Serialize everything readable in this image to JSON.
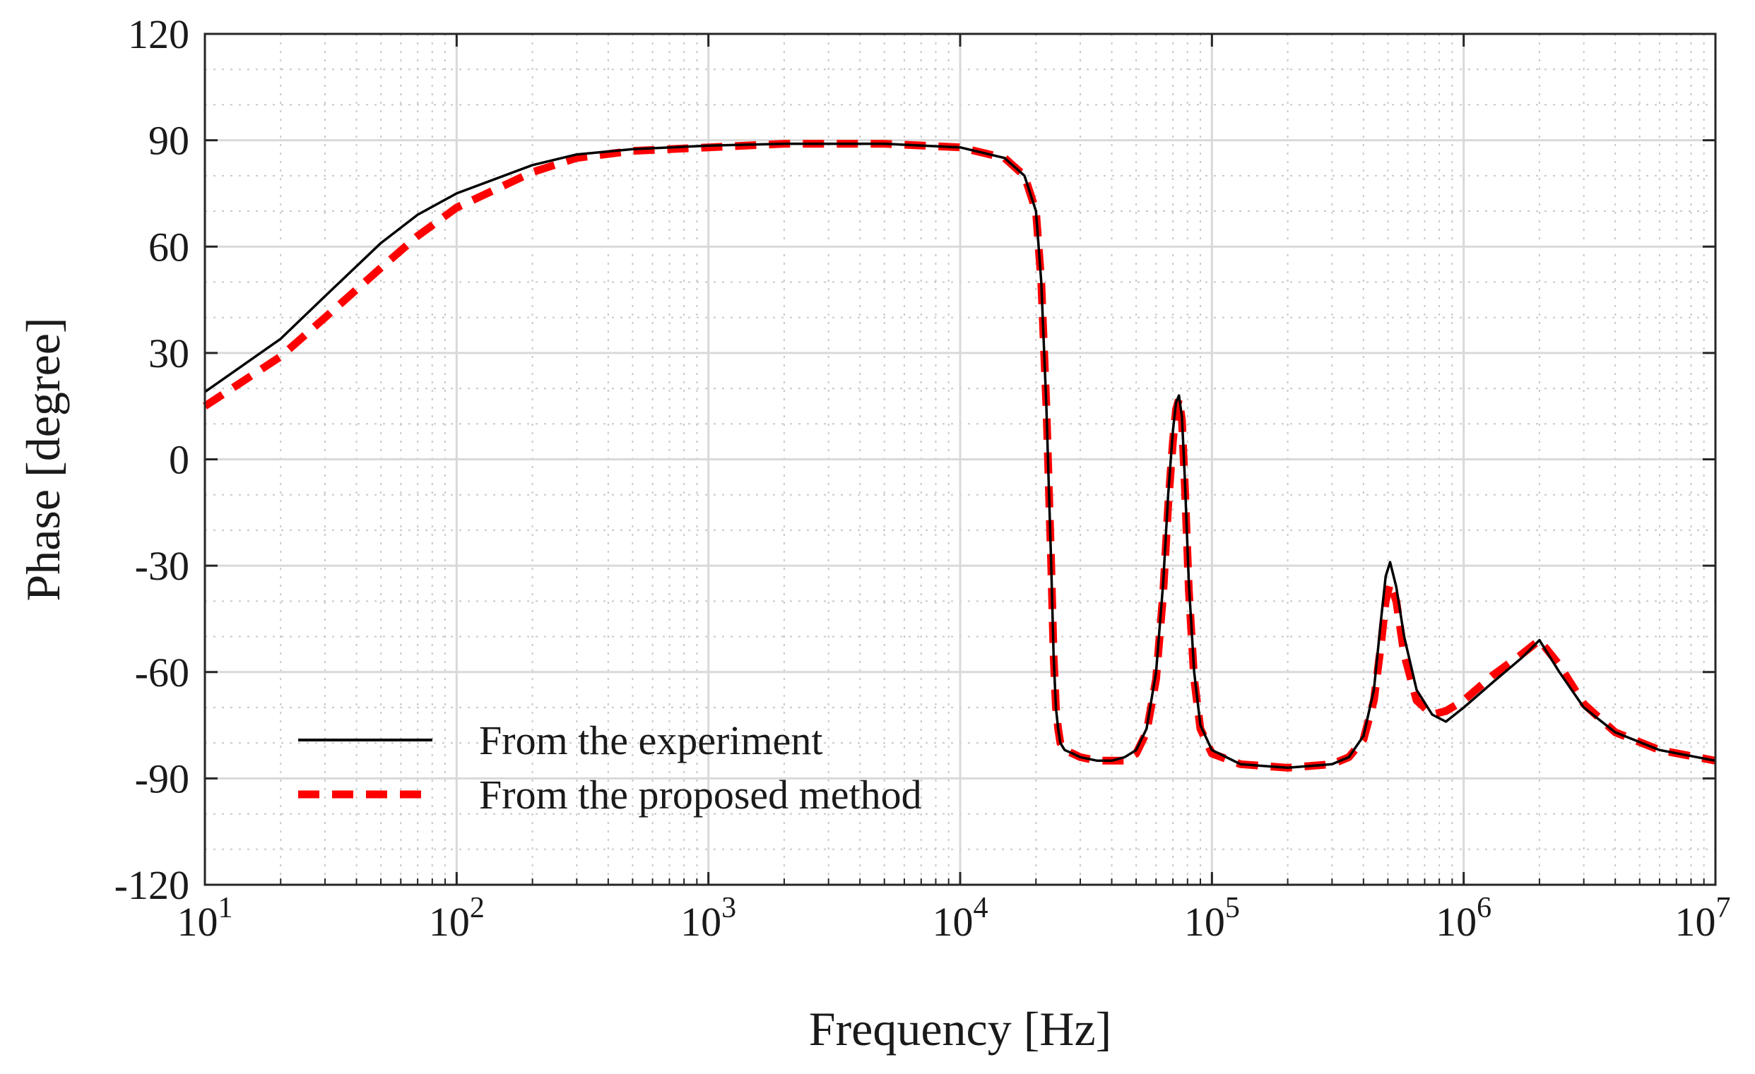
{
  "chart_data": {
    "type": "line",
    "title": "",
    "xlabel": "Frequency [Hz]",
    "ylabel": "Phase [degree]",
    "xscale": "log",
    "xlim": [
      10,
      10000000
    ],
    "ylim": [
      -120,
      120
    ],
    "grid": true,
    "minor_grid": true,
    "legend_position": "bottom-left",
    "x_ticks": [
      {
        "value": 10,
        "base": "10",
        "exp": "1"
      },
      {
        "value": 100,
        "base": "10",
        "exp": "2"
      },
      {
        "value": 1000,
        "base": "10",
        "exp": "3"
      },
      {
        "value": 10000,
        "base": "10",
        "exp": "4"
      },
      {
        "value": 100000,
        "base": "10",
        "exp": "5"
      },
      {
        "value": 1000000,
        "base": "10",
        "exp": "6"
      },
      {
        "value": 10000000,
        "base": "10",
        "exp": "7"
      }
    ],
    "y_ticks": [
      {
        "value": 120,
        "label": "120"
      },
      {
        "value": 90,
        "label": "90"
      },
      {
        "value": 60,
        "label": "60"
      },
      {
        "value": 30,
        "label": "30"
      },
      {
        "value": 0,
        "label": "0"
      },
      {
        "value": -30,
        "label": "-30"
      },
      {
        "value": -60,
        "label": "-60"
      },
      {
        "value": -90,
        "label": "-90"
      },
      {
        "value": -120,
        "label": "-120"
      }
    ],
    "series": [
      {
        "name": "From the experiment",
        "color": "#000000",
        "style": "solid",
        "x": [
          10,
          20,
          30,
          50,
          70,
          100,
          200,
          300,
          500,
          1000,
          2000,
          5000,
          10000,
          15000,
          18000,
          20000,
          21000,
          22000,
          23000,
          23500,
          24000,
          24500,
          25000,
          26000,
          28000,
          30000,
          35000,
          40000,
          45000,
          50000,
          55000,
          60000,
          64000,
          67000,
          70000,
          72000,
          74000,
          76000,
          78000,
          81000,
          85000,
          90000,
          100000,
          130000,
          200000,
          300000,
          350000,
          400000,
          440000,
          470000,
          490000,
          510000,
          540000,
          580000,
          650000,
          750000,
          850000,
          1000000,
          1300000,
          1700000,
          2000000,
          2400000,
          3000000,
          4000000,
          6000000,
          10000000
        ],
        "y": [
          19,
          34,
          46,
          61,
          69,
          75,
          83,
          86,
          87.5,
          88.5,
          89,
          89,
          88,
          85,
          80,
          70,
          50,
          15,
          -30,
          -55,
          -70,
          -76,
          -80,
          -82,
          -83,
          -84,
          -85,
          -85,
          -84,
          -82,
          -76,
          -60,
          -35,
          -10,
          8,
          16,
          18,
          12,
          -5,
          -35,
          -60,
          -75,
          -82,
          -86,
          -87,
          -86,
          -84,
          -78,
          -65,
          -45,
          -33,
          -29,
          -36,
          -50,
          -65,
          -72,
          -74,
          -70,
          -63,
          -56,
          -51,
          -60,
          -70,
          -77,
          -82,
          -85
        ]
      },
      {
        "name": "From the proposed method",
        "color": "#ff0000",
        "style": "dashed",
        "x": [
          10,
          20,
          30,
          50,
          70,
          100,
          200,
          300,
          500,
          1000,
          2000,
          5000,
          10000,
          15000,
          18000,
          20000,
          21000,
          22000,
          23000,
          23500,
          24000,
          24500,
          25000,
          26000,
          28000,
          30000,
          35000,
          40000,
          45000,
          50000,
          55000,
          60000,
          64000,
          67000,
          70000,
          72000,
          74000,
          76000,
          78000,
          81000,
          85000,
          90000,
          100000,
          130000,
          200000,
          300000,
          350000,
          400000,
          440000,
          470000,
          490000,
          510000,
          540000,
          580000,
          650000,
          750000,
          850000,
          1000000,
          1300000,
          1700000,
          2000000,
          2400000,
          3000000,
          4000000,
          6000000,
          10000000
        ],
        "y": [
          15,
          29,
          40,
          54,
          63,
          71,
          81,
          85,
          87,
          88,
          89,
          89,
          88,
          85,
          80,
          70,
          50,
          15,
          -30,
          -55,
          -70,
          -76,
          -80,
          -82,
          -83,
          -84,
          -85,
          -85,
          -85,
          -83,
          -77,
          -62,
          -38,
          -13,
          5,
          14,
          17,
          11,
          -7,
          -37,
          -62,
          -76,
          -83,
          -86,
          -87,
          -86,
          -84,
          -79,
          -68,
          -52,
          -40,
          -35,
          -40,
          -55,
          -68,
          -72,
          -71,
          -68,
          -61,
          -55,
          -51,
          -58,
          -69,
          -77,
          -82,
          -85
        ]
      }
    ]
  }
}
